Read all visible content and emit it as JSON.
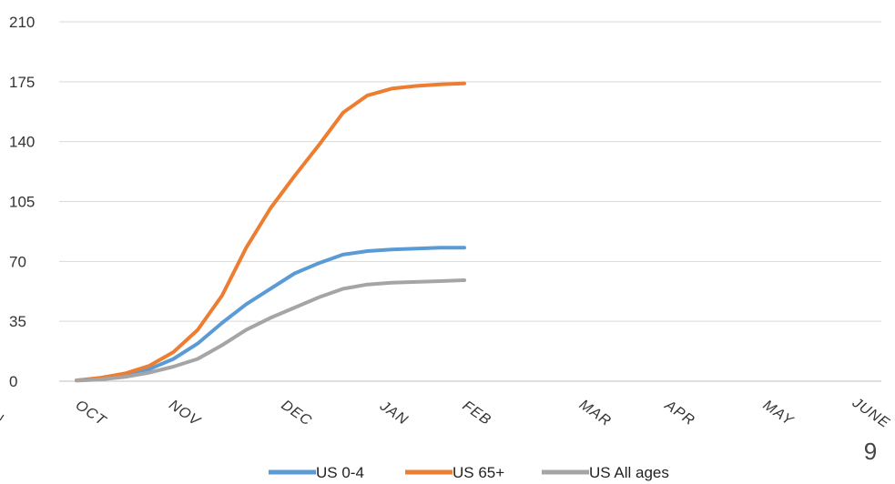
{
  "page_number": "9",
  "chart_data": {
    "type": "line",
    "title": "",
    "xlabel": "",
    "ylabel": "",
    "ylim": [
      0,
      210
    ],
    "y_ticks": [
      "0",
      "35",
      "70",
      "105",
      "140",
      "175",
      "210"
    ],
    "x_ticks": [
      "OCT",
      "NOV",
      "DEC",
      "JAN",
      "FEB",
      "MAR",
      "APR",
      "MAY",
      "JUNE"
    ],
    "grid": true,
    "legend_position": "bottom",
    "x": [
      0,
      0.25,
      0.5,
      0.75,
      1,
      1.25,
      1.5,
      1.75,
      2,
      2.25,
      2.5,
      2.75,
      3,
      3.25,
      3.5,
      3.75,
      4
    ],
    "series": [
      {
        "name": "US 0-4",
        "color": "#5B9BD5",
        "values": [
          0.5,
          1.5,
          3.5,
          7,
          13,
          22,
          34,
          45,
          54,
          63,
          69,
          74,
          76,
          77,
          77.5,
          78,
          78
        ]
      },
      {
        "name": "US 65+",
        "color": "#ED7D31",
        "values": [
          0.5,
          2,
          4.5,
          9,
          17,
          30,
          50,
          78,
          101,
          120,
          138,
          157,
          167,
          171,
          172.5,
          173.5,
          174
        ]
      },
      {
        "name": "US All ages",
        "color": "#A5A5A5",
        "values": [
          0.3,
          1,
          2.5,
          5,
          8.5,
          13,
          21,
          30,
          37,
          43,
          49,
          54,
          56.5,
          57.5,
          58,
          58.5,
          59
        ]
      }
    ]
  }
}
